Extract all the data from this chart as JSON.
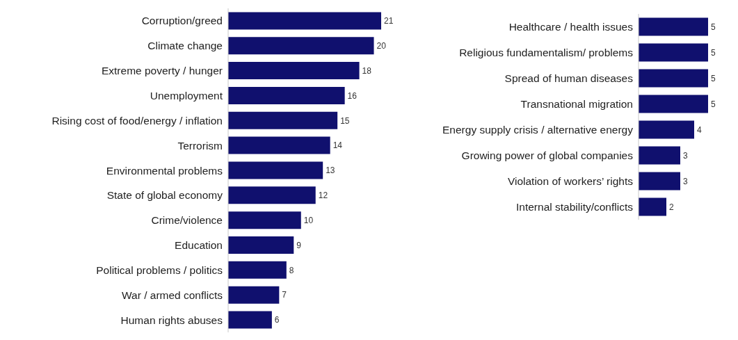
{
  "chart_data": [
    {
      "type": "bar",
      "orientation": "horizontal",
      "categories": [
        "Corruption/greed",
        "Climate change",
        "Extreme poverty / hunger",
        "Unemployment",
        "Rising cost of food/energy / inflation",
        "Terrorism",
        "Environmental problems",
        "State of global economy",
        "Crime/violence",
        "Education",
        "Political problems / politics",
        "War / armed conflicts",
        "Human rights abuses"
      ],
      "values": [
        21,
        20,
        18,
        16,
        15,
        14,
        13,
        12,
        10,
        9,
        8,
        7,
        6
      ],
      "color": "#10106e",
      "data_labels": true
    },
    {
      "type": "bar",
      "orientation": "horizontal",
      "categories": [
        "Healthcare / health issues",
        "Religious fundamentalism/ problems",
        "Spread of human diseases",
        "Transnational migration",
        "Energy supply crisis / alternative energy",
        "Growing power of global companies",
        "Violation of workers’ rights",
        "Internal stability/conflicts"
      ],
      "values": [
        5,
        5,
        5,
        5,
        4,
        3,
        3,
        2
      ],
      "color": "#10106e",
      "data_labels": true
    }
  ]
}
